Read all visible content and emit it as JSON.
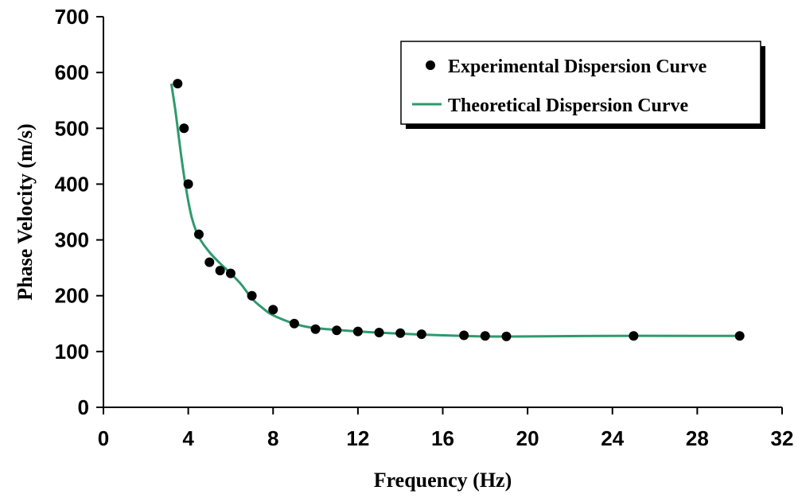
{
  "chart_data": {
    "type": "scatter",
    "title": "",
    "xlabel": "Frequency (Hz)",
    "ylabel": "Phase Velocity (m/s)",
    "xlim": [
      0,
      32
    ],
    "ylim": [
      0,
      700
    ],
    "xticks": [
      0,
      4,
      8,
      12,
      16,
      20,
      24,
      28,
      32
    ],
    "yticks": [
      0,
      100,
      200,
      300,
      400,
      500,
      600,
      700
    ],
    "grid": false,
    "legend_position": "top-right",
    "series": [
      {
        "name": "Experimental Dispersion Curve",
        "kind": "scatter",
        "color": "#000000",
        "points": [
          [
            3.5,
            580
          ],
          [
            3.8,
            500
          ],
          [
            4.0,
            400
          ],
          [
            4.5,
            310
          ],
          [
            5.0,
            260
          ],
          [
            5.5,
            245
          ],
          [
            6.0,
            240
          ],
          [
            7.0,
            200
          ],
          [
            8.0,
            175
          ],
          [
            9.0,
            150
          ],
          [
            10.0,
            140
          ],
          [
            11.0,
            138
          ],
          [
            12.0,
            136
          ],
          [
            13.0,
            134
          ],
          [
            14.0,
            133
          ],
          [
            15.0,
            131
          ],
          [
            17.0,
            129
          ],
          [
            18.0,
            128
          ],
          [
            19.0,
            127
          ],
          [
            25.0,
            128
          ],
          [
            30.0,
            128
          ]
        ]
      },
      {
        "name": "Theoretical Dispersion Curve",
        "kind": "line",
        "color": "#2e9a6e",
        "points": [
          [
            3.2,
            580
          ],
          [
            3.4,
            530
          ],
          [
            3.6,
            470
          ],
          [
            3.8,
            415
          ],
          [
            4.0,
            370
          ],
          [
            4.2,
            335
          ],
          [
            4.5,
            305
          ],
          [
            5.0,
            278
          ],
          [
            5.5,
            258
          ],
          [
            6.0,
            240
          ],
          [
            6.5,
            220
          ],
          [
            7.0,
            195
          ],
          [
            7.5,
            178
          ],
          [
            8.0,
            165
          ],
          [
            9.0,
            150
          ],
          [
            10.0,
            142
          ],
          [
            12.0,
            136
          ],
          [
            14.0,
            132
          ],
          [
            16.0,
            129
          ],
          [
            18.0,
            127
          ],
          [
            20.0,
            127
          ],
          [
            24.0,
            128
          ],
          [
            28.0,
            128
          ],
          [
            30.0,
            128
          ]
        ]
      }
    ]
  }
}
